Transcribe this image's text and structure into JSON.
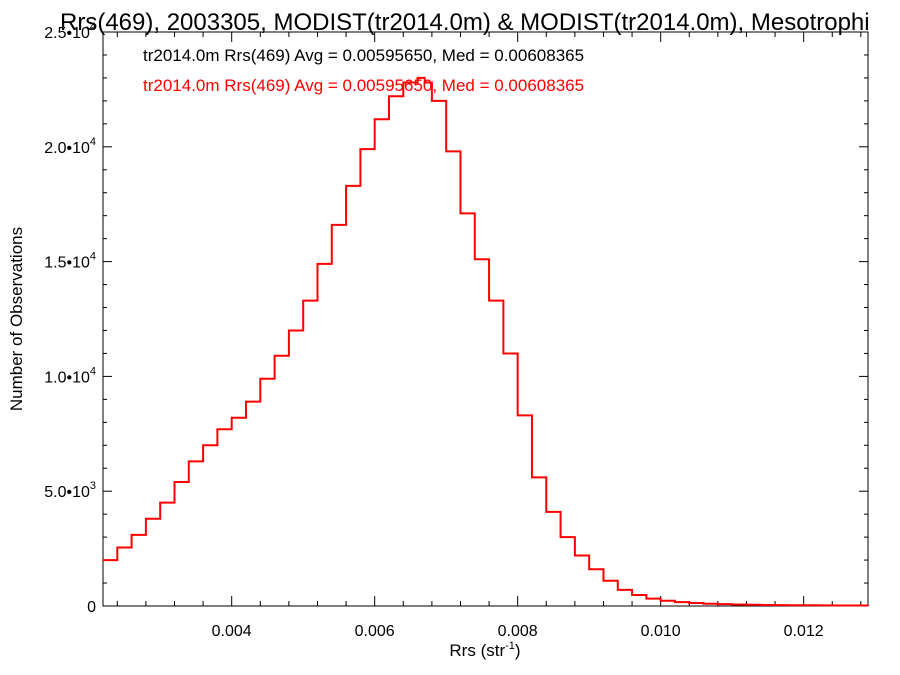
{
  "chart_data": {
    "type": "line",
    "title": "Rrs(469), 2003305, MODIST(tr2014.0m) & MODIST(tr2014.0m), Mesotrophi",
    "xlabel_base": "Rrs (str",
    "xlabel_sup": "-1",
    "xlabel_close": ")",
    "ylabel": "Number of Observations",
    "xlim": [
      0.0022,
      0.0129
    ],
    "ylim": [
      0,
      25000
    ],
    "x_ticks": [
      {
        "v": 0.004,
        "label": "0.004"
      },
      {
        "v": 0.006,
        "label": "0.006"
      },
      {
        "v": 0.008,
        "label": "0.008"
      },
      {
        "v": 0.01,
        "label": "0.010"
      },
      {
        "v": 0.012,
        "label": "0.012"
      }
    ],
    "y_ticks": [
      {
        "v": 0,
        "base": "0",
        "exp": ""
      },
      {
        "v": 5000,
        "base": "5.0•10",
        "exp": "3"
      },
      {
        "v": 10000,
        "base": "1.0•10",
        "exp": "4"
      },
      {
        "v": 15000,
        "base": "1.5•10",
        "exp": "4"
      },
      {
        "v": 20000,
        "base": "2.0•10",
        "exp": "4"
      },
      {
        "v": 25000,
        "base": "2.5•10",
        "exp": "4"
      }
    ],
    "annotations": [
      {
        "text": "tr2014.0m Rrs(469) Avg = 0.00595650, Med = 0.00608365",
        "color": "#000000"
      },
      {
        "text": "tr2014.0m Rrs(469) Avg = 0.00595650, Med = 0.00608365",
        "color": "#ff0000"
      }
    ],
    "series": [
      {
        "color": "#ff0000",
        "x": [
          0.0022,
          0.0024,
          0.0026,
          0.0028,
          0.003,
          0.0032,
          0.0034,
          0.0036,
          0.0038,
          0.004,
          0.0042,
          0.0044,
          0.0046,
          0.0048,
          0.005,
          0.0052,
          0.0054,
          0.0056,
          0.0058,
          0.006,
          0.0062,
          0.0064,
          0.0066,
          0.0067,
          0.0068,
          0.007,
          0.0072,
          0.0074,
          0.0076,
          0.0078,
          0.008,
          0.0082,
          0.0084,
          0.0086,
          0.0088,
          0.009,
          0.0092,
          0.0094,
          0.0096,
          0.0098,
          0.01,
          0.0102,
          0.0104,
          0.0106,
          0.0108,
          0.011,
          0.0112,
          0.0114,
          0.0116,
          0.0118,
          0.012,
          0.0122,
          0.0124,
          0.0126,
          0.0129
        ],
        "y": [
          2000,
          2550,
          3100,
          3800,
          4500,
          5400,
          6300,
          7000,
          7700,
          8200,
          8900,
          9900,
          10900,
          12000,
          13300,
          14900,
          16600,
          18300,
          19900,
          21200,
          22200,
          22800,
          23000,
          22800,
          22000,
          19800,
          17100,
          15100,
          13300,
          11000,
          8300,
          5600,
          4100,
          3000,
          2200,
          1600,
          1100,
          700,
          480,
          320,
          230,
          170,
          130,
          100,
          80,
          65,
          55,
          45,
          40,
          35,
          30,
          25,
          22,
          20,
          15
        ]
      }
    ]
  }
}
